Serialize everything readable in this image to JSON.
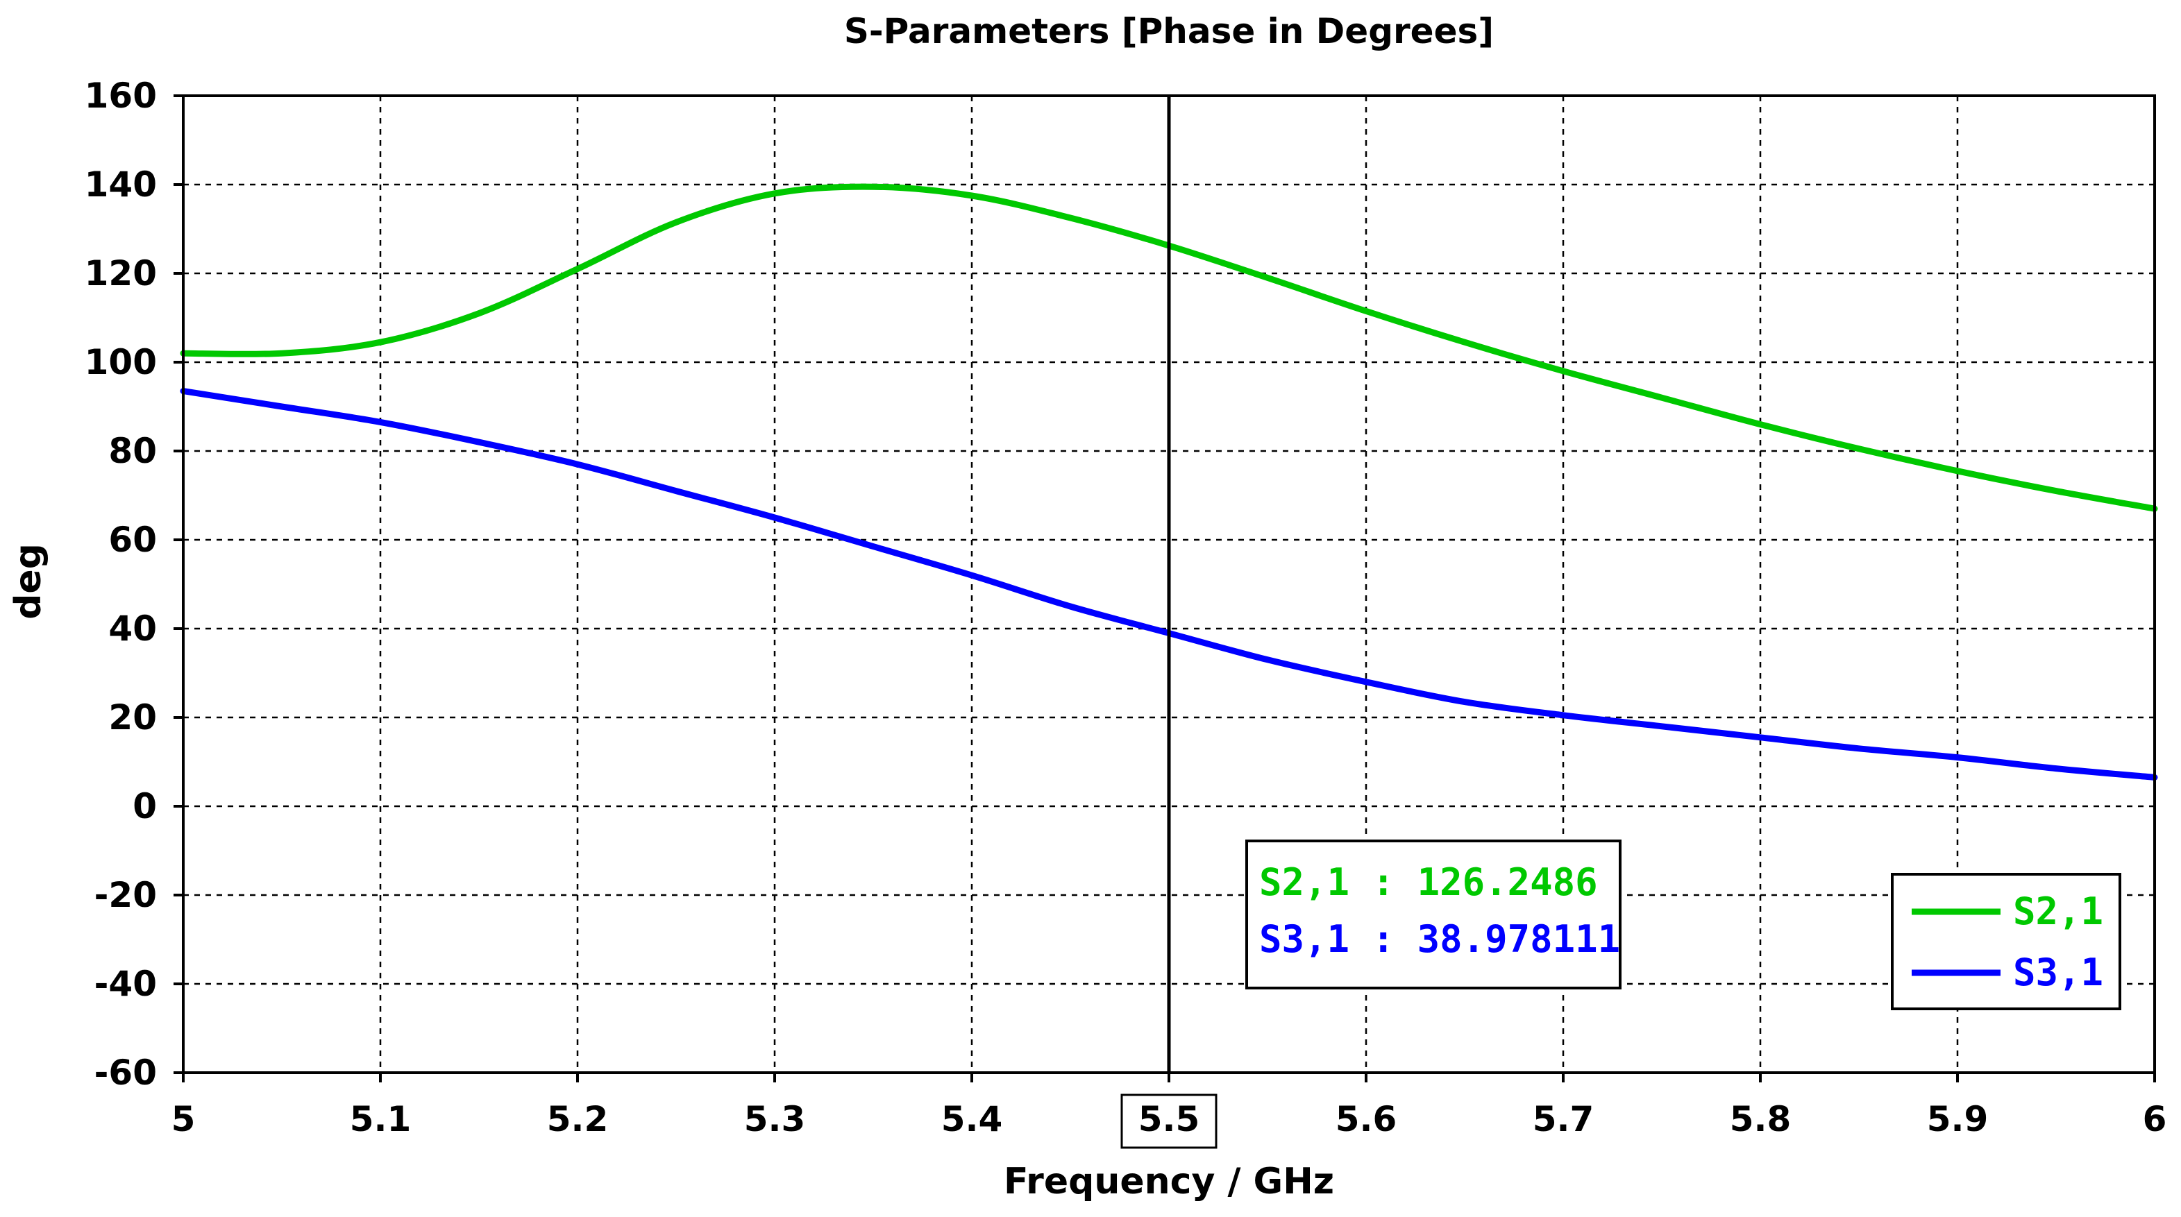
{
  "chart_data": {
    "type": "line",
    "title": "S-Parameters [Phase in Degrees]",
    "xlabel": "Frequency / GHz",
    "ylabel": "deg",
    "xlim": [
      5,
      6
    ],
    "ylim": [
      -60,
      160
    ],
    "xticks": [
      "5",
      "5.1",
      "5.2",
      "5.3",
      "5.4",
      "5.5",
      "5.6",
      "5.7",
      "5.8",
      "5.9",
      "6"
    ],
    "yticks": [
      "160",
      "140",
      "120",
      "100",
      "80",
      "60",
      "40",
      "20",
      "0",
      "-20",
      "-40",
      "-60"
    ],
    "grid": true,
    "legend_position": "bottom-right",
    "series": [
      {
        "name": "S2,1",
        "color": "#00c800",
        "x": [
          5.0,
          5.05,
          5.1,
          5.15,
          5.2,
          5.25,
          5.3,
          5.35,
          5.4,
          5.45,
          5.5,
          5.55,
          5.6,
          5.65,
          5.7,
          5.75,
          5.8,
          5.85,
          5.9,
          5.95,
          6.0
        ],
        "y": [
          102,
          102,
          104.5,
          111,
          121,
          131.5,
          138,
          139.5,
          137.5,
          132.5,
          126.2486,
          119,
          111.5,
          104.5,
          98,
          92,
          86,
          80.5,
          75.5,
          71,
          67
        ]
      },
      {
        "name": "S3,1",
        "color": "#0000ff",
        "x": [
          5.0,
          5.05,
          5.1,
          5.15,
          5.2,
          5.25,
          5.3,
          5.35,
          5.4,
          5.45,
          5.5,
          5.55,
          5.6,
          5.65,
          5.7,
          5.75,
          5.8,
          5.85,
          5.9,
          5.95,
          6.0
        ],
        "y": [
          93.5,
          90,
          86.5,
          82,
          77,
          71,
          65,
          58.5,
          52,
          45,
          38.978111,
          33,
          28,
          23.5,
          20.5,
          18,
          15.5,
          13,
          11,
          8.5,
          6.5
        ]
      }
    ],
    "marker": {
      "x": 5.5,
      "x_label": "5.5",
      "readouts": [
        {
          "text": "S2,1 : 126.2486",
          "color": "#00c800"
        },
        {
          "text": "S3,1 : 38.978111",
          "color": "#0000ff"
        }
      ]
    }
  }
}
